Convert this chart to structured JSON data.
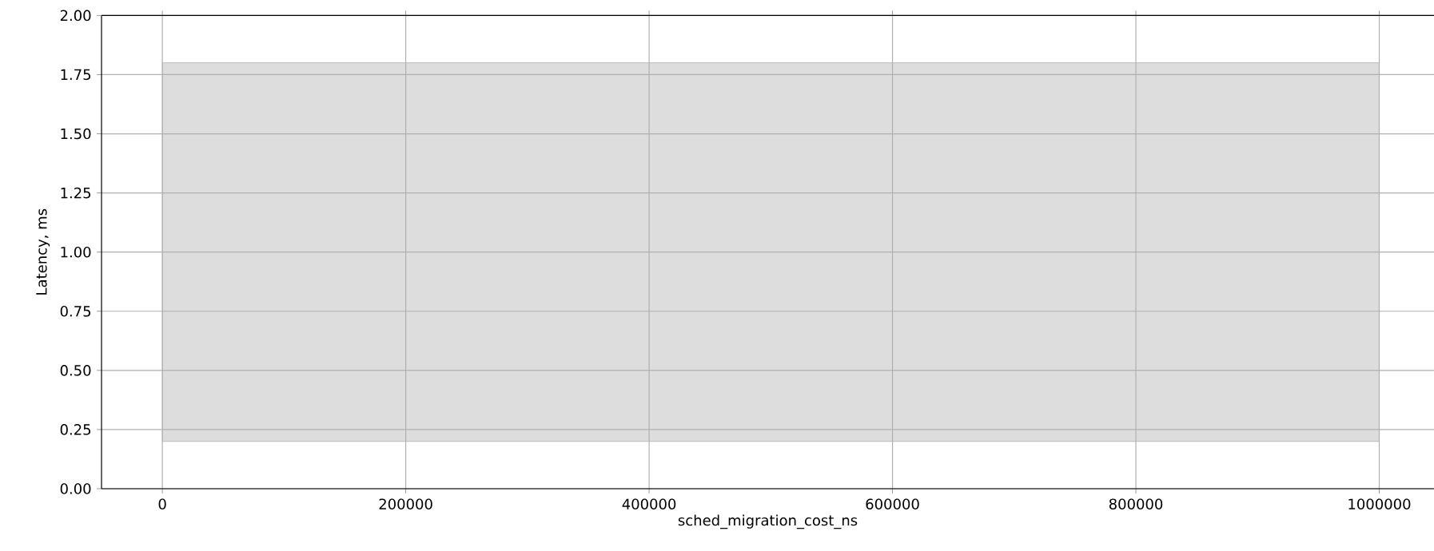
{
  "chart_data": {
    "type": "area",
    "xlabel": "sched_migration_cost_ns",
    "ylabel": "Latency, ms",
    "series": [
      {
        "color": "#dddddd",
        "x": [
          0,
          1000000
        ],
        "values": [
          null,
          null
        ],
        "lower": [
          0.2,
          0.2
        ],
        "upper": [
          1.8,
          1.8
        ]
      }
    ],
    "xlim": [
      -50000,
      1045000
    ],
    "ylim": [
      0,
      2
    ],
    "xticks": [
      0,
      200000,
      400000,
      600000,
      800000,
      1000000
    ],
    "yticks": [
      {
        "value": 0,
        "label": "0.00"
      },
      {
        "value": 0.25,
        "label": "0.25"
      },
      {
        "value": 0.5,
        "label": "0.50"
      },
      {
        "value": 0.75,
        "label": "0.75"
      },
      {
        "value": 1,
        "label": "1.00"
      },
      {
        "value": 1.25,
        "label": "1.25"
      },
      {
        "value": 1.5,
        "label": "1.50"
      },
      {
        "value": 1.75,
        "label": "1.75"
      },
      {
        "value": 2,
        "label": "2.00"
      }
    ],
    "grid": true
  }
}
